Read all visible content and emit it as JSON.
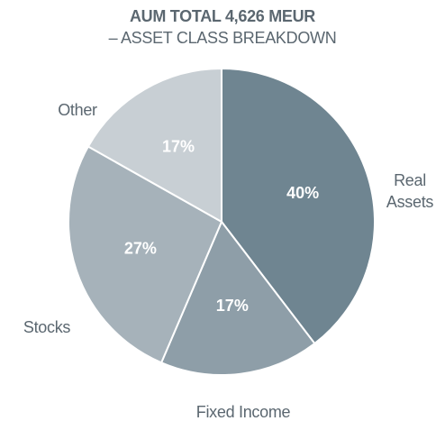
{
  "chart_data": {
    "type": "pie",
    "title": "AUM TOTAL 4,626 MEUR",
    "subtitle": "– ASSET CLASS BREAKDOWN",
    "categories": [
      "Real Assets",
      "Fixed Income",
      "Stocks",
      "Other"
    ],
    "values": [
      40,
      17,
      27,
      17
    ],
    "value_labels": [
      "40%",
      "17%",
      "27%",
      "17%"
    ],
    "colors": [
      "#6f8591",
      "#8e9ea8",
      "#a6b2ba",
      "#c8cfd4"
    ]
  }
}
